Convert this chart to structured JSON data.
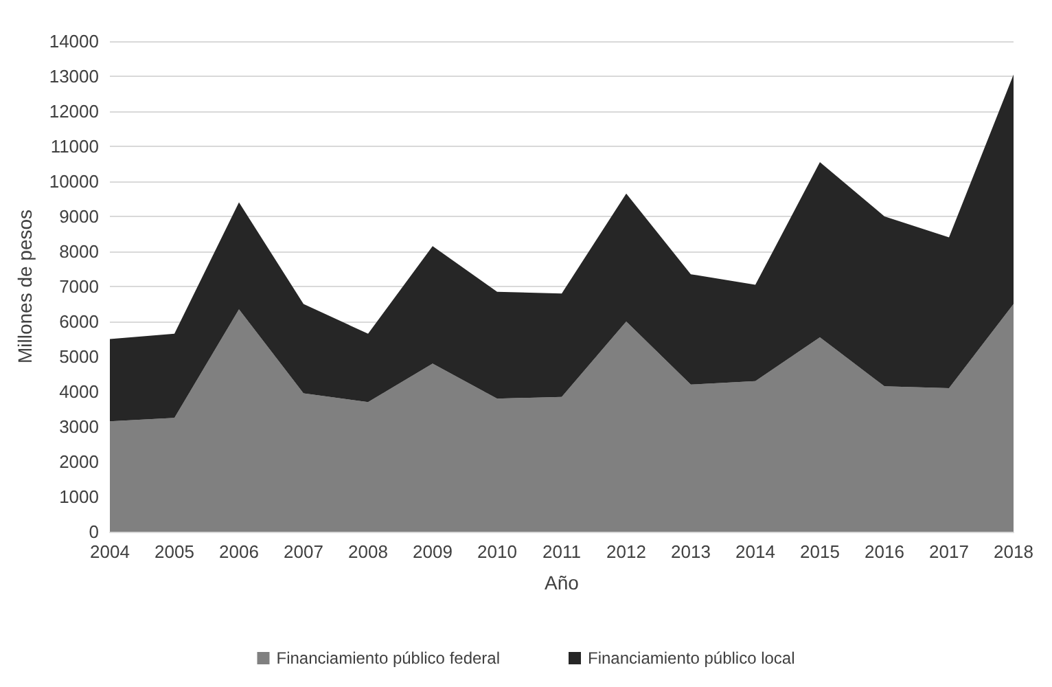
{
  "chart_data": {
    "type": "area",
    "stacked": true,
    "xlabel": "Año",
    "ylabel": "Millones de pesos",
    "categories": [
      "2004",
      "2005",
      "2006",
      "2007",
      "2008",
      "2009",
      "2010",
      "2011",
      "2012",
      "2013",
      "2014",
      "2015",
      "2016",
      "2017",
      "2018"
    ],
    "series": [
      {
        "name": "Financiamiento público federal",
        "color": "#808080",
        "values": [
          3150,
          3250,
          6350,
          3950,
          3700,
          4800,
          3800,
          3850,
          6000,
          4200,
          4300,
          5550,
          4150,
          4100,
          6500
        ]
      },
      {
        "name": "Financiamiento público local",
        "color": "#262626",
        "values": [
          2350,
          2400,
          3050,
          2550,
          1950,
          3350,
          3050,
          2950,
          3650,
          3150,
          2750,
          5000,
          4850,
          4300,
          6550
        ]
      }
    ],
    "ylim": [
      0,
      14000
    ],
    "yticks": [
      0,
      1000,
      2000,
      3000,
      4000,
      5000,
      6000,
      7000,
      8000,
      9000,
      10000,
      11000,
      12000,
      13000,
      14000
    ],
    "grid": "y",
    "legend": "bottom"
  }
}
